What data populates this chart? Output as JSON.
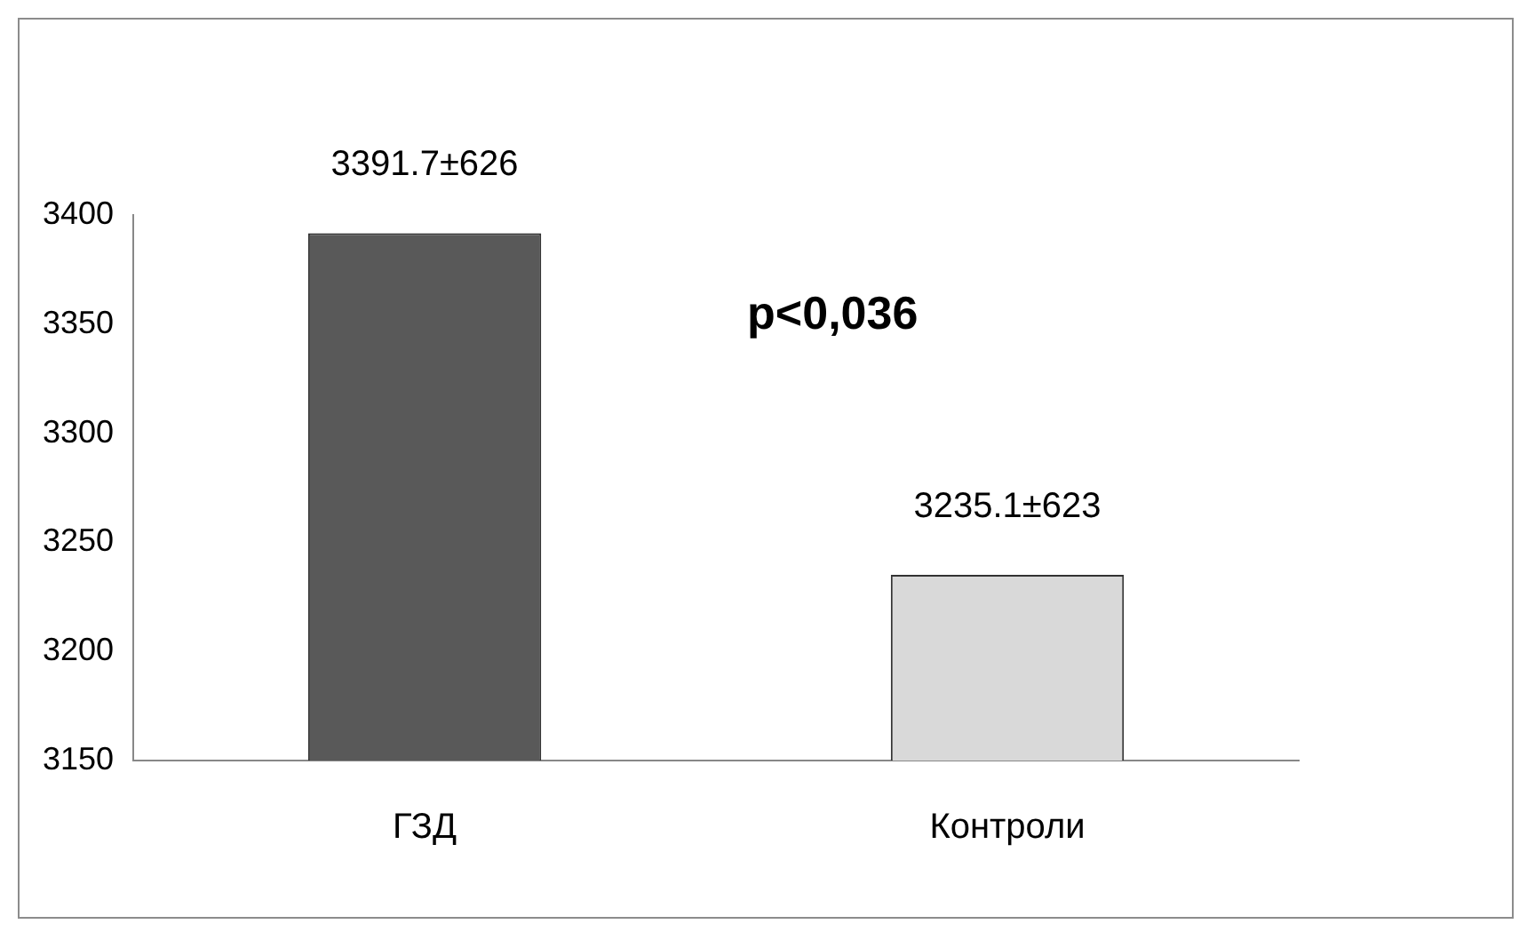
{
  "chart_data": {
    "type": "bar",
    "categories": [
      "ГЗД",
      "Контроли"
    ],
    "values": [
      3391.7,
      3235.1
    ],
    "colors": [
      "#595959",
      "#d9d9d9"
    ],
    "value_labels": [
      "3391.7±626",
      "3235.1±623"
    ],
    "ylim": [
      3150,
      3400
    ],
    "yticks": [
      3150,
      3200,
      3250,
      3300,
      3350,
      3400
    ],
    "grid": false,
    "legend": false,
    "annotations": [
      "p<0,036"
    ]
  }
}
